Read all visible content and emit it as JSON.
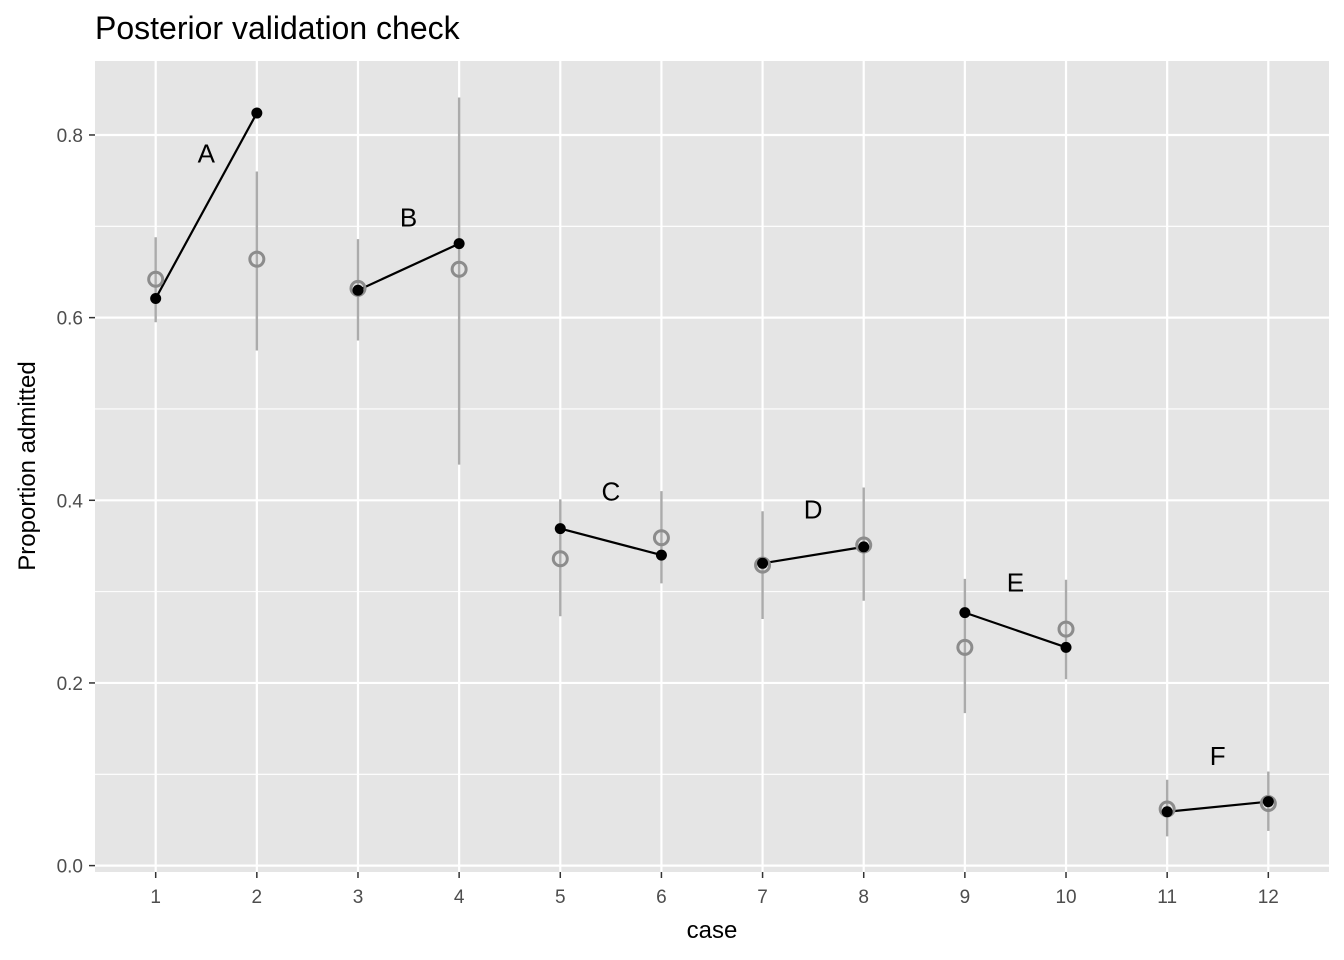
{
  "chart_data": {
    "type": "scatter",
    "title": "Posterior validation check",
    "xlabel": "case",
    "ylabel": "Proportion admitted",
    "xlim": [
      0.4,
      12.6
    ],
    "ylim": [
      -0.007,
      0.881
    ],
    "x_ticks": [
      1,
      2,
      3,
      4,
      5,
      6,
      7,
      8,
      9,
      10,
      11,
      12
    ],
    "y_ticks": [
      0.0,
      0.2,
      0.4,
      0.6,
      0.8
    ],
    "y_tick_labels": [
      "0.0",
      "0.2",
      "0.4",
      "0.6",
      "0.8"
    ],
    "grid": true,
    "panel_background": "#e5e5e5",
    "grid_color": "#ffffff",
    "series": [
      {
        "kind": "predicted",
        "marker": "open-circle",
        "color": "#8c8c8c",
        "interval_color": "#ababab",
        "x": [
          1,
          2,
          3,
          4,
          5,
          6,
          7,
          8,
          9,
          10,
          11,
          12
        ],
        "mean": [
          0.642,
          0.664,
          0.632,
          0.653,
          0.336,
          0.359,
          0.329,
          0.351,
          0.239,
          0.259,
          0.062,
          0.068
        ],
        "lower": [
          0.595,
          0.564,
          0.575,
          0.439,
          0.273,
          0.309,
          0.27,
          0.29,
          0.167,
          0.204,
          0.032,
          0.038
        ],
        "upper": [
          0.688,
          0.76,
          0.686,
          0.841,
          0.401,
          0.41,
          0.388,
          0.414,
          0.314,
          0.313,
          0.094,
          0.103
        ]
      },
      {
        "kind": "observed",
        "marker": "filled-circle",
        "color": "#000000",
        "x": [
          1,
          2,
          3,
          4,
          5,
          6,
          7,
          8,
          9,
          10,
          11,
          12
        ],
        "values": [
          0.621,
          0.824,
          0.63,
          0.681,
          0.369,
          0.34,
          0.331,
          0.349,
          0.277,
          0.239,
          0.059,
          0.07
        ]
      }
    ],
    "segments": [
      [
        1,
        2
      ],
      [
        3,
        4
      ],
      [
        5,
        6
      ],
      [
        7,
        8
      ],
      [
        9,
        10
      ],
      [
        11,
        12
      ]
    ],
    "annotations": [
      {
        "text": "A",
        "x": 1.5,
        "y": 0.77
      },
      {
        "text": "B",
        "x": 3.5,
        "y": 0.7
      },
      {
        "text": "C",
        "x": 5.5,
        "y": 0.4
      },
      {
        "text": "D",
        "x": 7.5,
        "y": 0.38
      },
      {
        "text": "E",
        "x": 9.5,
        "y": 0.3
      },
      {
        "text": "F",
        "x": 11.5,
        "y": 0.11
      }
    ]
  }
}
